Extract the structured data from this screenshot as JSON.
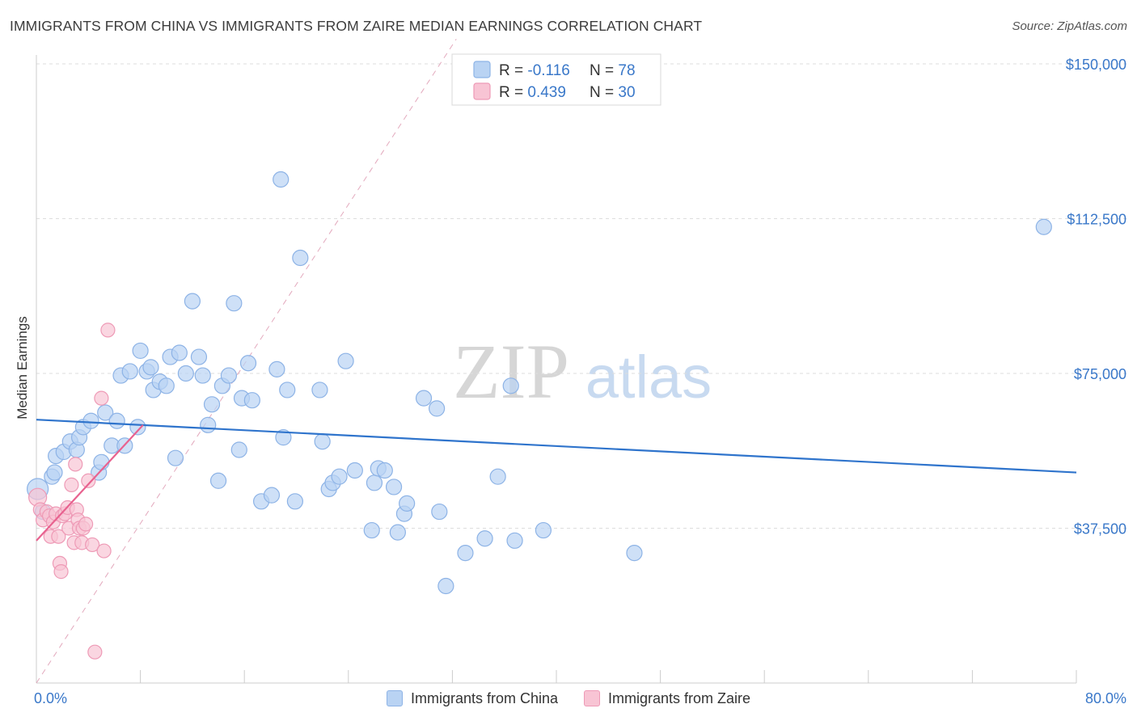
{
  "title": "IMMIGRANTS FROM CHINA VS IMMIGRANTS FROM ZAIRE MEDIAN EARNINGS CORRELATION CHART",
  "source": "Source: ZipAtlas.com",
  "watermark": {
    "zip": "ZIP",
    "atlas": "atlas"
  },
  "colors": {
    "china_fill": "#b9d3f3",
    "china_stroke": "#8db3e6",
    "china_line": "#2f74cc",
    "zaire_fill": "#f8c4d4",
    "zaire_stroke": "#ee9ab6",
    "zaire_line": "#e8628f",
    "grid": "#dddddd",
    "axis_text_blue": "#3a78c9"
  },
  "legend": {
    "rows": [
      {
        "r_label": "R = ",
        "r_value": "-0.116",
        "n_label": "N = ",
        "n_value": "78"
      },
      {
        "r_label": "R = ",
        "r_value": "0.439",
        "n_label": "N = ",
        "n_value": "30"
      }
    ]
  },
  "chart_data": {
    "type": "scatter",
    "title": "IMMIGRANTS FROM CHINA VS IMMIGRANTS FROM ZAIRE MEDIAN EARNINGS CORRELATION CHART",
    "xlabel": "",
    "ylabel": "Median Earnings",
    "xlim": [
      0,
      80
    ],
    "ylim": [
      0,
      150000
    ],
    "x_tick_labels": [
      "0.0%",
      "80.0%"
    ],
    "y_ticks": [
      37500,
      75000,
      112500,
      150000
    ],
    "y_tick_labels": [
      "$37,500",
      "$75,000",
      "$112,500",
      "$150,000"
    ],
    "grid": true,
    "legend_position": "top-center",
    "series": [
      {
        "name": "Immigrants from China",
        "r": -0.116,
        "n": 78,
        "trend": {
          "x": [
            0,
            80
          ],
          "y": [
            63800,
            51000
          ]
        },
        "points": [
          [
            0.1,
            47000
          ],
          [
            0.5,
            41500
          ],
          [
            1.2,
            50000
          ],
          [
            1.4,
            51000
          ],
          [
            1.5,
            55000
          ],
          [
            2.1,
            56000
          ],
          [
            2.6,
            58500
          ],
          [
            3.1,
            56500
          ],
          [
            3.3,
            59500
          ],
          [
            3.6,
            62000
          ],
          [
            4.2,
            63500
          ],
          [
            4.8,
            51000
          ],
          [
            5.0,
            53500
          ],
          [
            5.3,
            65500
          ],
          [
            5.8,
            57500
          ],
          [
            6.2,
            63500
          ],
          [
            6.5,
            74500
          ],
          [
            6.8,
            57500
          ],
          [
            7.2,
            75500
          ],
          [
            7.8,
            62000
          ],
          [
            8.0,
            80500
          ],
          [
            8.5,
            75500
          ],
          [
            8.8,
            76500
          ],
          [
            9.0,
            71000
          ],
          [
            9.5,
            73000
          ],
          [
            10.0,
            72000
          ],
          [
            10.3,
            79000
          ],
          [
            10.7,
            54500
          ],
          [
            11.0,
            80000
          ],
          [
            11.5,
            75000
          ],
          [
            12.0,
            92500
          ],
          [
            12.5,
            79000
          ],
          [
            12.8,
            74500
          ],
          [
            13.2,
            62500
          ],
          [
            13.5,
            67500
          ],
          [
            14.0,
            49000
          ],
          [
            14.3,
            72000
          ],
          [
            14.8,
            74500
          ],
          [
            15.2,
            92000
          ],
          [
            15.6,
            56500
          ],
          [
            15.8,
            69000
          ],
          [
            16.3,
            77500
          ],
          [
            16.6,
            68500
          ],
          [
            17.3,
            44000
          ],
          [
            18.1,
            45500
          ],
          [
            18.5,
            76000
          ],
          [
            18.8,
            122000
          ],
          [
            19.0,
            59500
          ],
          [
            19.3,
            71000
          ],
          [
            19.9,
            44000
          ],
          [
            20.3,
            103000
          ],
          [
            21.8,
            71000
          ],
          [
            22.0,
            58500
          ],
          [
            22.5,
            47000
          ],
          [
            22.8,
            48500
          ],
          [
            23.3,
            50000
          ],
          [
            23.8,
            78000
          ],
          [
            24.5,
            51500
          ],
          [
            25.8,
            37000
          ],
          [
            26.0,
            48500
          ],
          [
            26.3,
            52000
          ],
          [
            26.8,
            51500
          ],
          [
            27.5,
            47500
          ],
          [
            27.8,
            36500
          ],
          [
            28.3,
            41000
          ],
          [
            28.5,
            43500
          ],
          [
            29.8,
            69000
          ],
          [
            30.8,
            66500
          ],
          [
            31.0,
            41500
          ],
          [
            31.5,
            23500
          ],
          [
            33.0,
            31500
          ],
          [
            34.5,
            35000
          ],
          [
            35.5,
            50000
          ],
          [
            36.5,
            72000
          ],
          [
            36.8,
            34500
          ],
          [
            39.0,
            37000
          ],
          [
            46.0,
            31500
          ],
          [
            77.5,
            110500
          ]
        ]
      },
      {
        "name": "Immigrants from Zaire",
        "r": 0.439,
        "n": 30,
        "trend": {
          "x": [
            0,
            8.2
          ],
          "y": [
            34500,
            62500
          ]
        },
        "points": [
          [
            0.1,
            45000
          ],
          [
            0.3,
            42000
          ],
          [
            0.5,
            39500
          ],
          [
            0.8,
            41500
          ],
          [
            1.0,
            40500
          ],
          [
            1.1,
            35500
          ],
          [
            1.3,
            39000
          ],
          [
            1.5,
            41000
          ],
          [
            1.7,
            35500
          ],
          [
            1.8,
            29000
          ],
          [
            1.9,
            27000
          ],
          [
            2.0,
            40500
          ],
          [
            2.2,
            41000
          ],
          [
            2.4,
            42500
          ],
          [
            2.5,
            37500
          ],
          [
            2.7,
            48000
          ],
          [
            2.9,
            34000
          ],
          [
            3.0,
            53000
          ],
          [
            3.1,
            42000
          ],
          [
            3.2,
            39500
          ],
          [
            3.3,
            37500
          ],
          [
            3.5,
            34000
          ],
          [
            3.6,
            37500
          ],
          [
            3.8,
            38500
          ],
          [
            4.0,
            49000
          ],
          [
            4.3,
            33500
          ],
          [
            4.5,
            7500
          ],
          [
            5.0,
            69000
          ],
          [
            5.2,
            32000
          ],
          [
            5.5,
            85500
          ]
        ]
      }
    ]
  },
  "bottom_legend": {
    "items": [
      "Immigrants from China",
      "Immigrants from Zaire"
    ]
  }
}
